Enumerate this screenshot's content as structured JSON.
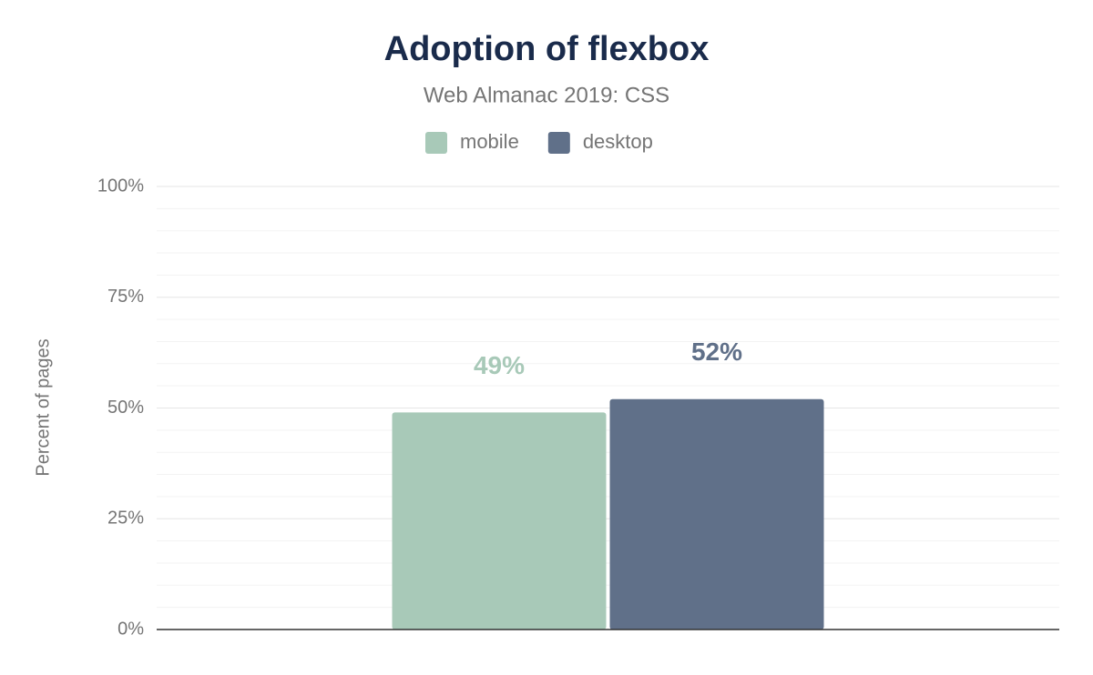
{
  "chart_data": {
    "type": "bar",
    "title": "Adoption of flexbox",
    "subtitle": "Web Almanac 2019: CSS",
    "y_label": "Percent of pages",
    "categories": [
      null
    ],
    "series": [
      {
        "name": "mobile",
        "color": "#a8c9b8",
        "values": [
          49
        ],
        "value_labels": [
          "49%"
        ]
      },
      {
        "name": "desktop",
        "color": "#607089",
        "values": [
          52
        ],
        "value_labels": [
          "52%"
        ]
      }
    ],
    "ylim": [
      0,
      100
    ],
    "yticks": [
      {
        "value": 0,
        "label": "0%"
      },
      {
        "value": 25,
        "label": "25%"
      },
      {
        "value": 50,
        "label": "50%"
      },
      {
        "value": 75,
        "label": "75%"
      },
      {
        "value": 100,
        "label": "100%"
      }
    ],
    "minor_yticks": [
      5,
      10,
      15,
      20,
      30,
      35,
      40,
      45,
      55,
      60,
      65,
      70,
      80,
      85,
      90,
      95
    ],
    "grid": true,
    "legend": "top"
  }
}
